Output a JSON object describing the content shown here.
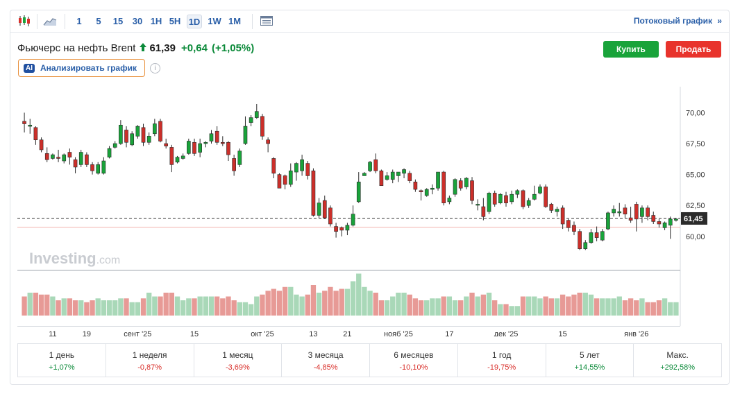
{
  "toolbar": {
    "intervals": [
      "1",
      "5",
      "15",
      "30",
      "1H",
      "5H",
      "1D",
      "1W",
      "1M"
    ],
    "active_interval": "1D",
    "stream_link": "Потоковый график",
    "stream_arrow": "»"
  },
  "instrument": {
    "name": "Фьючерс на нефть Brent",
    "price": "61,39",
    "change": "+0,64",
    "change_pct": "(+1,05%)"
  },
  "actions": {
    "buy": "Купить",
    "sell": "Продать"
  },
  "ai": {
    "badge": "AI",
    "label": "Анализировать график",
    "info": "i"
  },
  "watermark": {
    "brand": "Investing",
    "suffix": ".com"
  },
  "colors": {
    "up": "#19a33a",
    "down": "#cc2f2a",
    "vol_up": "#a9d8b8",
    "vol_down": "#e79a96",
    "price_tag": "#2b2b2b"
  },
  "chart_data": {
    "type": "candlestick",
    "title": "Фьючерс на нефть Brent",
    "y_axis": {
      "ticks": [
        "70,00",
        "67,50",
        "65,00",
        "62,50",
        "60,00"
      ],
      "tick_values": [
        70,
        67.5,
        65,
        62.5,
        60
      ],
      "ylim": [
        57.3,
        72.1
      ]
    },
    "current_price_label": "61,45",
    "current_price": 61.45,
    "reference_price": 60.75,
    "x_axis": {
      "labels": [
        "11",
        "19",
        "сент '25",
        "15",
        "окт '25",
        "13",
        "21",
        "нояб '25",
        "17",
        "дек '25",
        "15",
        "янв '26"
      ],
      "label_index": [
        5,
        11,
        20,
        30,
        42,
        51,
        57,
        66,
        75,
        85,
        95,
        108
      ]
    },
    "candles": [
      [
        69.3,
        69.1,
        70.0,
        68.4
      ],
      [
        68.9,
        69.0,
        69.5,
        68.3
      ],
      [
        68.8,
        67.8,
        68.9,
        67.4
      ],
      [
        67.8,
        67.0,
        68.0,
        66.8
      ],
      [
        66.7,
        66.2,
        67.2,
        66.0
      ],
      [
        66.3,
        66.6,
        66.7,
        66.2
      ],
      [
        66.4,
        66.3,
        67.0,
        66.0
      ],
      [
        66.1,
        66.6,
        66.7,
        65.9
      ],
      [
        66.8,
        66.4,
        67.1,
        65.8
      ],
      [
        66.2,
        65.6,
        66.4,
        65.1
      ],
      [
        65.8,
        66.8,
        67.0,
        65.6
      ],
      [
        66.6,
        65.8,
        66.8,
        65.6
      ],
      [
        65.8,
        65.3,
        66.0,
        65.0
      ],
      [
        65.1,
        65.8,
        66.0,
        65.0
      ],
      [
        65.1,
        66.1,
        66.4,
        65.0
      ],
      [
        66.4,
        67.1,
        67.3,
        66.3
      ],
      [
        67.2,
        67.5,
        67.7,
        67.1
      ],
      [
        67.5,
        69.0,
        69.4,
        67.4
      ],
      [
        68.6,
        67.6,
        68.9,
        67.2
      ],
      [
        67.4,
        68.3,
        68.5,
        67.3
      ],
      [
        68.1,
        68.9,
        69.0,
        67.9
      ],
      [
        68.8,
        67.6,
        69.1,
        67.3
      ],
      [
        67.6,
        68.1,
        68.4,
        67.4
      ],
      [
        68.3,
        69.1,
        69.5,
        68.1
      ],
      [
        69.3,
        67.7,
        69.5,
        67.6
      ],
      [
        67.5,
        67.3,
        67.9,
        67.1
      ],
      [
        67.2,
        65.8,
        67.4,
        65.2
      ],
      [
        66.0,
        66.4,
        66.5,
        65.9
      ],
      [
        66.3,
        66.5,
        66.7,
        66.2
      ],
      [
        66.7,
        67.7,
        67.9,
        66.6
      ],
      [
        67.6,
        66.7,
        67.9,
        66.5
      ],
      [
        66.8,
        67.5,
        67.9,
        66.4
      ],
      [
        67.5,
        67.6,
        67.7,
        67.2
      ],
      [
        67.7,
        68.3,
        68.6,
        67.5
      ],
      [
        68.5,
        67.6,
        68.9,
        67.4
      ],
      [
        67.6,
        67.5,
        68.1,
        67.3
      ],
      [
        67.6,
        66.6,
        67.7,
        66.1
      ],
      [
        66.3,
        65.3,
        66.6,
        64.9
      ],
      [
        65.8,
        66.9,
        67.1,
        65.6
      ],
      [
        67.5,
        68.9,
        69.7,
        67.4
      ],
      [
        69.2,
        69.6,
        69.8,
        68.9
      ],
      [
        69.6,
        70.1,
        70.7,
        69.5
      ],
      [
        69.7,
        68.1,
        69.9,
        67.8
      ],
      [
        67.8,
        67.5,
        68.0,
        66.8
      ],
      [
        66.3,
        65.1,
        66.4,
        64.7
      ],
      [
        65.0,
        63.9,
        65.1,
        63.9
      ],
      [
        64.9,
        64.2,
        65.0,
        63.8
      ],
      [
        64.2,
        65.3,
        65.9,
        64.0
      ],
      [
        65.2,
        65.9,
        66.0,
        64.5
      ],
      [
        65.3,
        66.2,
        66.6,
        64.9
      ],
      [
        65.9,
        64.9,
        66.1,
        64.6
      ],
      [
        65.3,
        61.7,
        65.5,
        61.6
      ],
      [
        61.7,
        62.7,
        63.1,
        61.5
      ],
      [
        62.9,
        61.5,
        63.3,
        61.4
      ],
      [
        62.3,
        61.0,
        62.5,
        60.8
      ],
      [
        60.8,
        60.4,
        61.1,
        59.9
      ],
      [
        60.7,
        60.5,
        60.8,
        60.0
      ],
      [
        60.5,
        60.9,
        61.1,
        60.1
      ],
      [
        60.9,
        61.8,
        62.5,
        60.8
      ],
      [
        62.8,
        64.4,
        65.2,
        62.7
      ],
      [
        64.9,
        65.1,
        65.2,
        64.9
      ],
      [
        65.3,
        66.0,
        66.1,
        65.2
      ],
      [
        66.2,
        65.3,
        66.7,
        65.1
      ],
      [
        65.3,
        64.1,
        65.4,
        64.1
      ],
      [
        64.6,
        64.9,
        65.2,
        64.5
      ],
      [
        64.6,
        65.2,
        65.4,
        64.3
      ],
      [
        64.9,
        65.2,
        65.2,
        64.4
      ],
      [
        65.1,
        65.4,
        65.5,
        64.7
      ],
      [
        65.1,
        64.5,
        65.3,
        64.3
      ],
      [
        64.4,
        63.8,
        64.6,
        63.6
      ],
      [
        63.7,
        63.6,
        63.8,
        62.9
      ],
      [
        63.3,
        63.8,
        63.9,
        63.2
      ],
      [
        63.8,
        63.9,
        64.2,
        63.4
      ],
      [
        63.9,
        65.2,
        65.2,
        63.7
      ],
      [
        65.2,
        62.7,
        65.3,
        62.5
      ],
      [
        62.8,
        63.1,
        63.3,
        62.6
      ],
      [
        63.4,
        64.6,
        64.7,
        63.2
      ],
      [
        64.5,
        63.9,
        64.7,
        63.7
      ],
      [
        64.0,
        64.7,
        64.8,
        63.8
      ],
      [
        64.5,
        62.9,
        64.8,
        62.6
      ],
      [
        62.6,
        62.6,
        63.0,
        62.1
      ],
      [
        62.4,
        61.6,
        63.1,
        61.3
      ],
      [
        62.0,
        63.5,
        63.6,
        61.8
      ],
      [
        63.5,
        62.6,
        63.7,
        62.4
      ],
      [
        62.7,
        63.4,
        63.5,
        62.6
      ],
      [
        63.3,
        62.7,
        63.6,
        62.4
      ],
      [
        62.8,
        63.4,
        63.7,
        62.6
      ],
      [
        63.4,
        63.7,
        63.8,
        63.1
      ],
      [
        63.7,
        62.4,
        63.8,
        62.2
      ],
      [
        62.5,
        62.9,
        63.1,
        62.3
      ],
      [
        63.0,
        63.4,
        64.1,
        62.9
      ],
      [
        63.5,
        64.0,
        64.2,
        63.4
      ],
      [
        64.0,
        62.4,
        64.2,
        62.3
      ],
      [
        62.6,
        62.1,
        62.7,
        61.9
      ],
      [
        62.0,
        62.2,
        62.4,
        61.6
      ],
      [
        62.3,
        61.0,
        62.5,
        60.6
      ],
      [
        61.3,
        60.7,
        61.4,
        60.4
      ],
      [
        60.9,
        60.4,
        61.2,
        60.1
      ],
      [
        60.4,
        59.0,
        60.6,
        58.9
      ],
      [
        59.0,
        59.5,
        59.7,
        58.9
      ],
      [
        59.5,
        60.3,
        60.6,
        59.4
      ],
      [
        60.3,
        59.9,
        60.8,
        59.6
      ],
      [
        59.7,
        60.4,
        60.6,
        59.6
      ],
      [
        60.6,
        61.9,
        62.0,
        60.5
      ],
      [
        61.9,
        62.2,
        62.5,
        61.6
      ],
      [
        61.9,
        62.0,
        62.7,
        61.6
      ],
      [
        62.3,
        61.8,
        62.6,
        61.5
      ],
      [
        61.5,
        61.3,
        62.4,
        61.1
      ],
      [
        62.6,
        61.4,
        62.8,
        60.4
      ],
      [
        61.6,
        62.3,
        62.5,
        61.1
      ],
      [
        62.3,
        61.6,
        62.5,
        61.3
      ],
      [
        61.7,
        61.2,
        62.0,
        61.0
      ],
      [
        61.2,
        61.0,
        61.4,
        60.7
      ],
      [
        60.7,
        61.1,
        61.2,
        60.5
      ],
      [
        60.9,
        61.4,
        61.6,
        59.8
      ],
      [
        61.3,
        61.4,
        61.5,
        61.2
      ]
    ],
    "volume": [
      10,
      12,
      12,
      11,
      11,
      10,
      8,
      9,
      9,
      8,
      8,
      7,
      8,
      9,
      8,
      8,
      8,
      9,
      9,
      7,
      7,
      9,
      12,
      10,
      10,
      12,
      12,
      10,
      8,
      9,
      9,
      10,
      10,
      10,
      10,
      9,
      10,
      8,
      7,
      7,
      6,
      10,
      11,
      13,
      14,
      13,
      15,
      15,
      11,
      10,
      11,
      16,
      12,
      13,
      15,
      13,
      14,
      14,
      18,
      22,
      15,
      13,
      12,
      8,
      8,
      10,
      12,
      12,
      11,
      9,
      8,
      8,
      9,
      9,
      10,
      10,
      8,
      8,
      10,
      12,
      10,
      11,
      12,
      8,
      6,
      6,
      5,
      5,
      10,
      10,
      10,
      9,
      10,
      9,
      9,
      11,
      10,
      11,
      12,
      12,
      11,
      9,
      9,
      9,
      9,
      10,
      8,
      9,
      8,
      9,
      7,
      7,
      8,
      9,
      7,
      7
    ],
    "volume_max": 24
  },
  "performance": [
    {
      "label": "1 день",
      "value": "+1,07%",
      "dir": "pos"
    },
    {
      "label": "1 неделя",
      "value": "-0,87%",
      "dir": "neg"
    },
    {
      "label": "1 месяц",
      "value": "-3,69%",
      "dir": "neg"
    },
    {
      "label": "3 месяца",
      "value": "-4,85%",
      "dir": "neg"
    },
    {
      "label": "6 месяцев",
      "value": "-10,10%",
      "dir": "neg"
    },
    {
      "label": "1 год",
      "value": "-19,75%",
      "dir": "neg"
    },
    {
      "label": "5 лет",
      "value": "+14,55%",
      "dir": "pos"
    },
    {
      "label": "Макс.",
      "value": "+292,58%",
      "dir": "pos"
    }
  ]
}
